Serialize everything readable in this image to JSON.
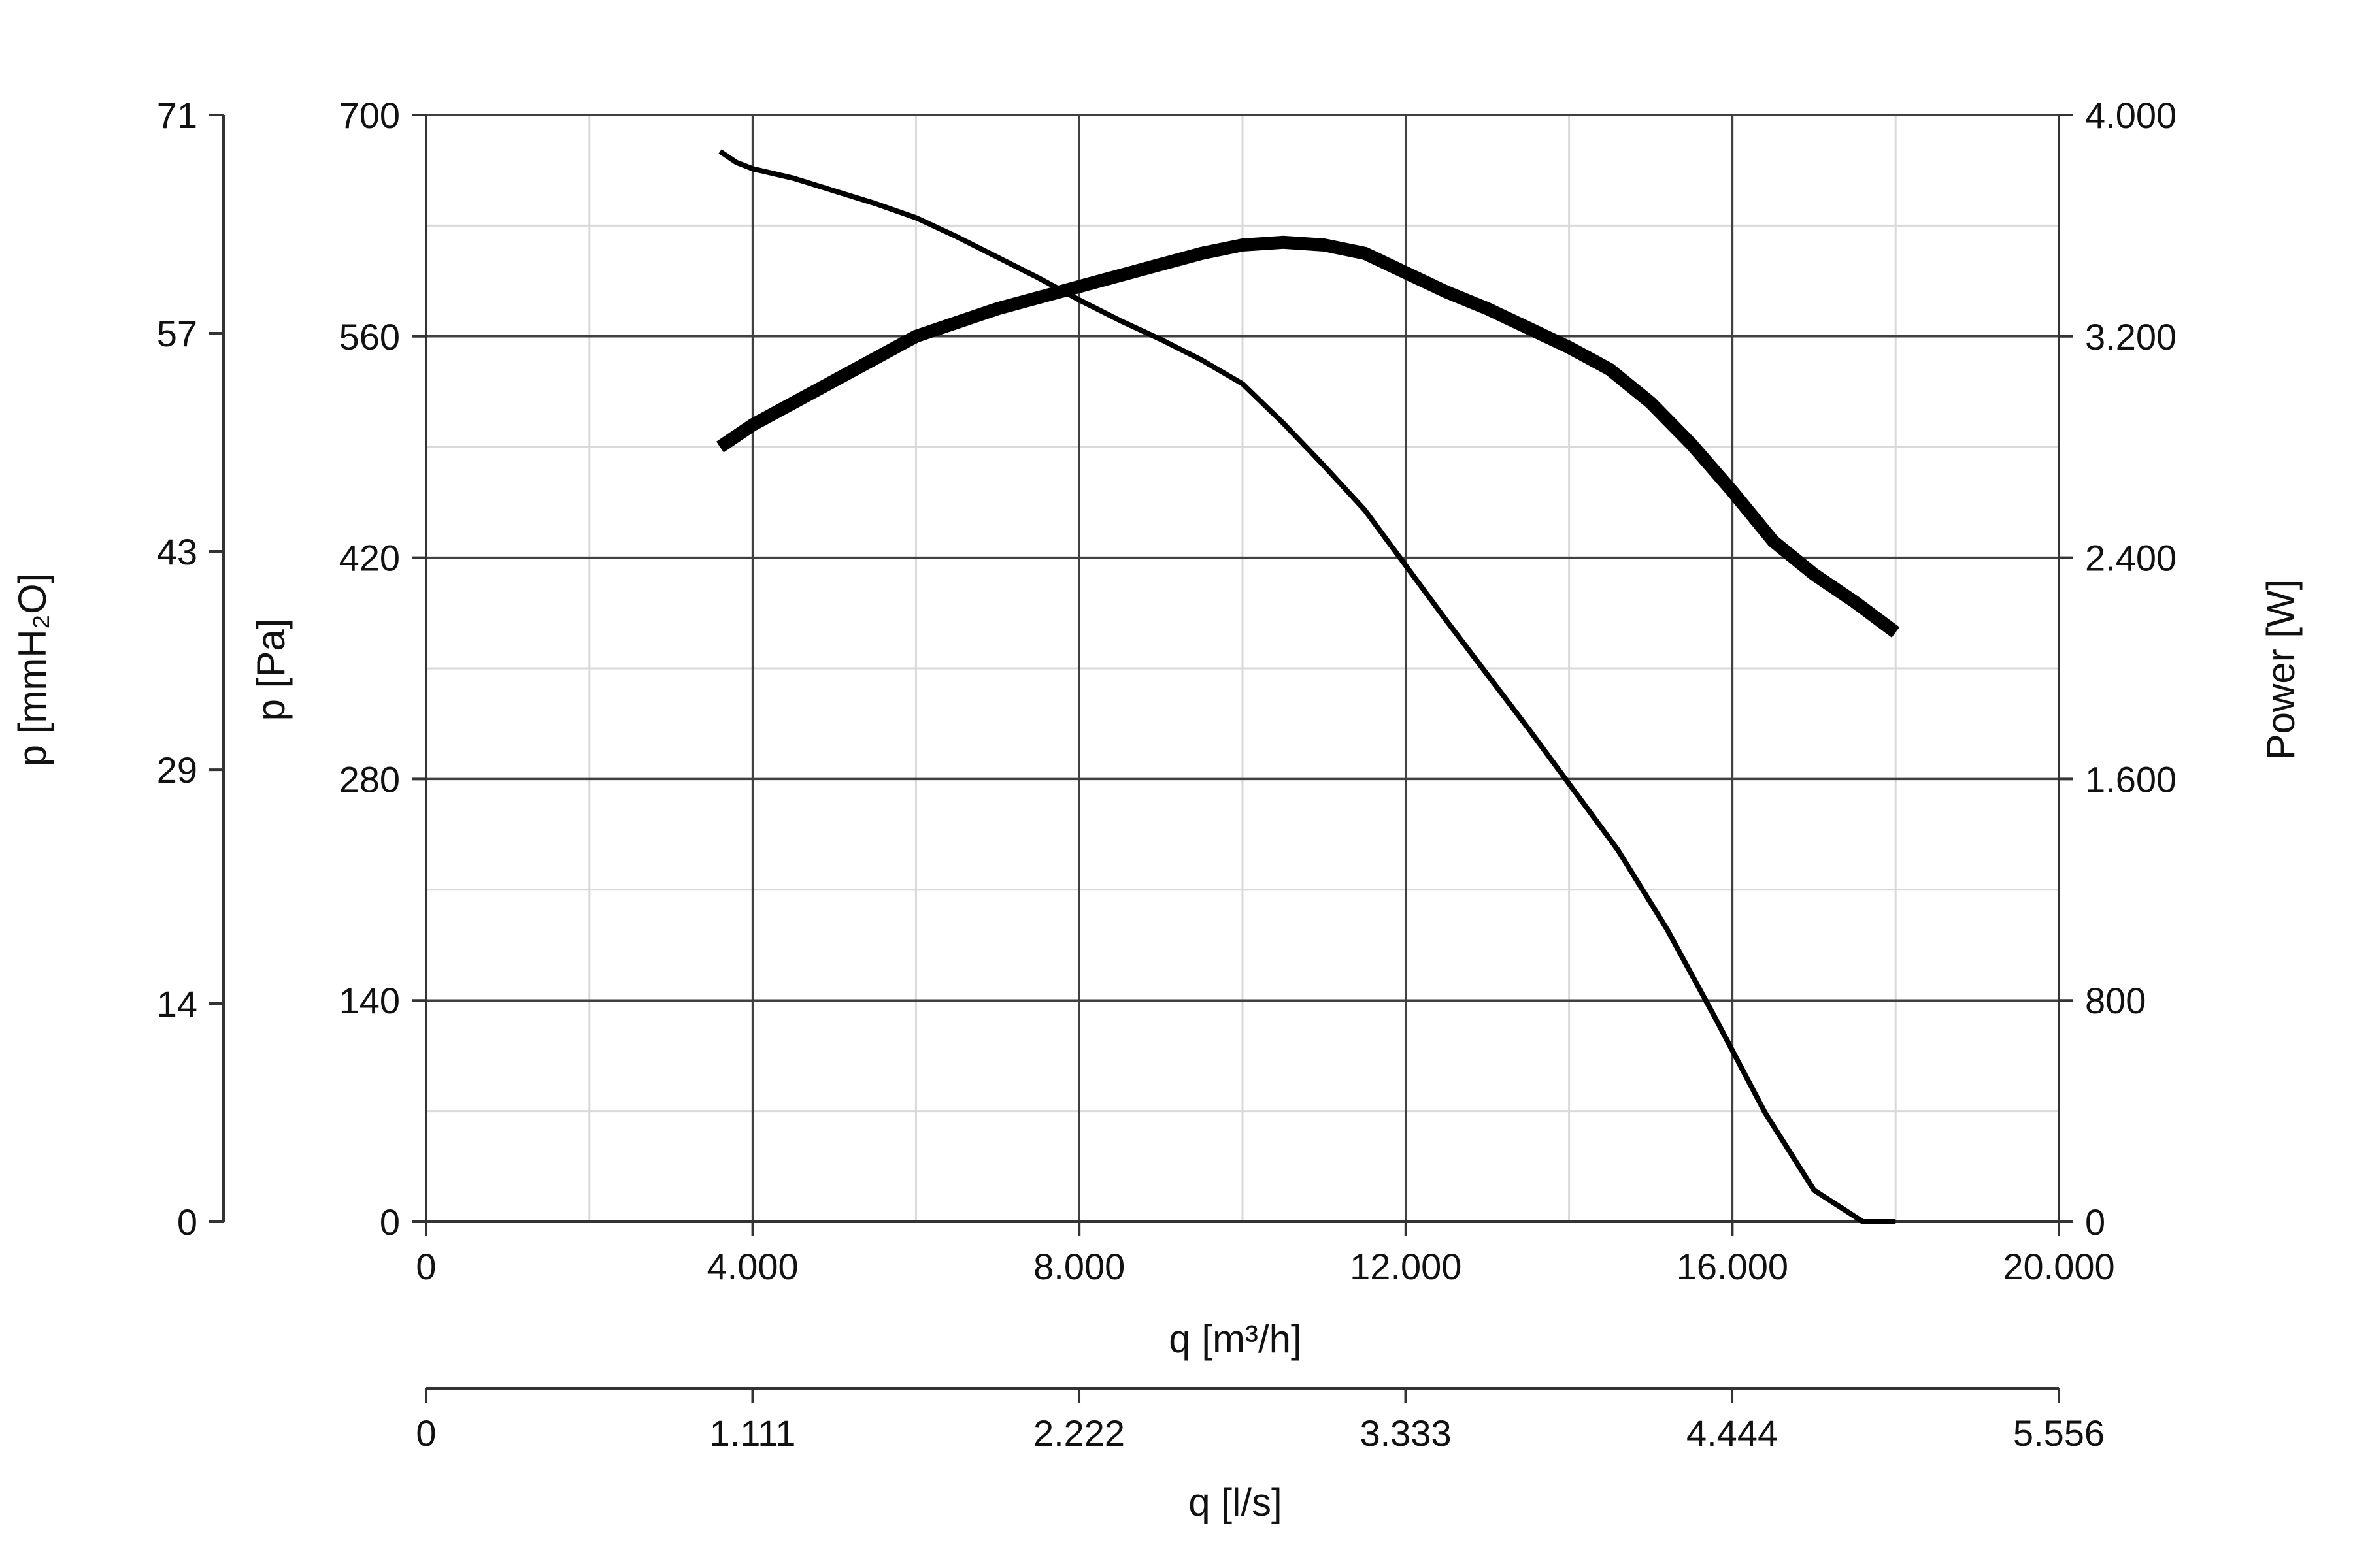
{
  "chart_data": {
    "type": "line",
    "x_axis": {
      "label": "q [m³/h]",
      "range": [
        0,
        20000
      ],
      "ticks": [
        0,
        4000,
        8000,
        12000,
        16000,
        20000
      ],
      "tick_labels": [
        "0",
        "4.000",
        "8.000",
        "12.000",
        "16.000",
        "20.000"
      ],
      "minor_step": 2000
    },
    "x2_axis": {
      "label": "q [l/s]",
      "range": [
        0,
        5.556
      ],
      "ticks": [
        0,
        1.111,
        2.222,
        3.333,
        4.444,
        5.556
      ],
      "tick_labels": [
        "0",
        "1.111",
        "2.222",
        "3.333",
        "4.444",
        "5.556"
      ]
    },
    "y_axis": {
      "label": "p [Pa]",
      "range": [
        0,
        700
      ],
      "ticks": [
        0,
        140,
        280,
        420,
        560,
        700
      ],
      "tick_labels": [
        "0",
        "140",
        "280",
        "420",
        "560",
        "700"
      ],
      "minor_step": 70
    },
    "y_outer_axis": {
      "label": "p [mmH₂O]",
      "range": [
        0,
        71
      ],
      "ticks": [
        0,
        14,
        29,
        43,
        57,
        71
      ],
      "tick_labels": [
        "0",
        "14",
        "29",
        "43",
        "57",
        "71"
      ]
    },
    "y2_axis": {
      "label": "Power [W]",
      "range": [
        0,
        4000
      ],
      "ticks": [
        0,
        800,
        1600,
        2400,
        3200,
        4000
      ],
      "tick_labels": [
        "0",
        "800",
        "1.600",
        "2.400",
        "3.200",
        "4.000"
      ]
    },
    "grid": true,
    "series": [
      {
        "axis": "left",
        "color": "#000000",
        "line": "thin",
        "x": [
          3600,
          3800,
          4000,
          4500,
          5000,
          5500,
          6000,
          6500,
          7000,
          7500,
          8000,
          8500,
          9000,
          9500,
          10000,
          10500,
          11000,
          11500,
          12000,
          12500,
          13000,
          13500,
          14000,
          14600,
          15200,
          15800,
          16400,
          17000,
          17600,
          18000
        ],
        "y": [
          677,
          670,
          666,
          660,
          652,
          644,
          635,
          623,
          610,
          597,
          583,
          570,
          558,
          545,
          530,
          505,
          478,
          450,
          415,
          380,
          346,
          312,
          277,
          235,
          185,
          128,
          69,
          20,
          -30,
          0
        ]
      },
      {
        "axis": "right",
        "color": "#000000",
        "line": "thick",
        "x": [
          3600,
          4000,
          4500,
          5000,
          5500,
          6000,
          6500,
          7000,
          7500,
          8000,
          8500,
          9000,
          9500,
          10000,
          10500,
          11000,
          11500,
          12000,
          12500,
          13000,
          13500,
          14000,
          14500,
          15000,
          15500,
          16000,
          16500,
          17000,
          17500,
          18000
        ],
        "y": [
          2800,
          2880,
          2960,
          3040,
          3120,
          3200,
          3250,
          3300,
          3340,
          3380,
          3420,
          3460,
          3500,
          3530,
          3540,
          3530,
          3500,
          3430,
          3360,
          3300,
          3230,
          3160,
          3080,
          2960,
          2810,
          2640,
          2460,
          2340,
          2240,
          2130
        ]
      }
    ]
  }
}
